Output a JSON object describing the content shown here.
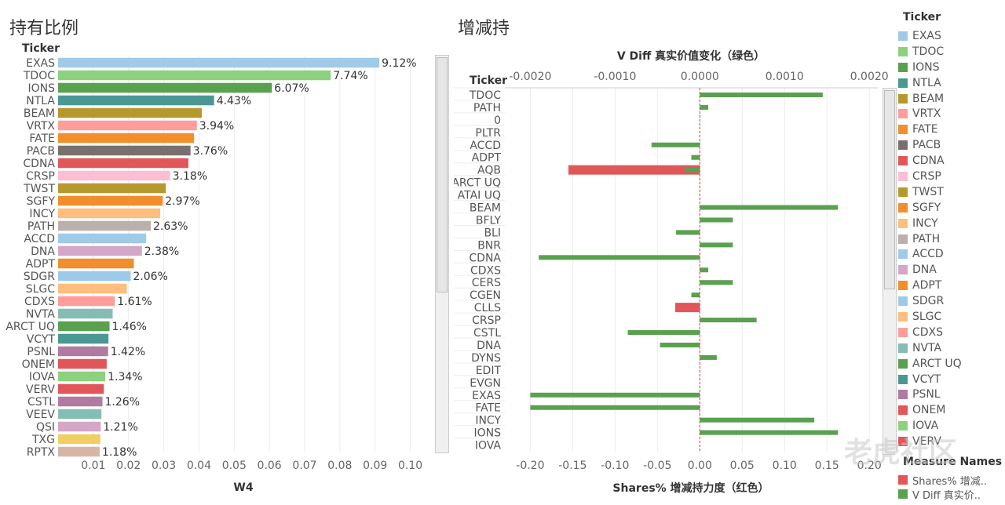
{
  "left_title": "持有比例",
  "right_title": "增减持",
  "chart_data": [
    {
      "type": "bar",
      "orientation": "horizontal",
      "row_header": "Ticker",
      "xlabel": "W4",
      "xlim": [
        0,
        0.105
      ],
      "xticks": [
        0.01,
        0.02,
        0.03,
        0.04,
        0.05,
        0.06,
        0.07,
        0.08,
        0.09,
        0.1
      ],
      "xtick_labels": [
        "0.01",
        "0.02",
        "0.03",
        "0.04",
        "0.05",
        "0.06",
        "0.07",
        "0.08",
        "0.09",
        "0.10"
      ],
      "categories": [
        "EXAS",
        "TDOC",
        "IONS",
        "NTLA",
        "BEAM",
        "VRTX",
        "FATE",
        "PACB",
        "CDNA",
        "CRSP",
        "TWST",
        "SGFY",
        "INCY",
        "PATH",
        "ACCD",
        "DNA",
        "ADPT",
        "SDGR",
        "SLGC",
        "CDXS",
        "NVTA",
        "ARCT UQ",
        "VCYT",
        "PSNL",
        "ONEM",
        "IOVA",
        "VERV",
        "CSTL",
        "VEEV",
        "QSI",
        "TXG",
        "RPTX"
      ],
      "values": [
        0.0912,
        0.0774,
        0.0607,
        0.0443,
        0.0408,
        0.0394,
        0.0386,
        0.0376,
        0.037,
        0.0318,
        0.0306,
        0.0297,
        0.029,
        0.0263,
        0.025,
        0.0238,
        0.0215,
        0.0206,
        0.0195,
        0.0161,
        0.0155,
        0.0146,
        0.0143,
        0.0142,
        0.0138,
        0.0134,
        0.013,
        0.0126,
        0.0123,
        0.0121,
        0.012,
        0.0118
      ],
      "data_labels": [
        "9.12%",
        "7.74%",
        "6.07%",
        "4.43%",
        "",
        "3.94%",
        "",
        "3.76%",
        "",
        "3.18%",
        "",
        "2.97%",
        "",
        "2.63%",
        "",
        "2.38%",
        "",
        "2.06%",
        "",
        "1.61%",
        "",
        "1.46%",
        "",
        "1.42%",
        "",
        "1.34%",
        "",
        "1.26%",
        "",
        "1.21%",
        "",
        "1.18%"
      ],
      "colors": [
        "#a0cbe8",
        "#8cd17d",
        "#59a14f",
        "#499894",
        "#b6992d",
        "#ff9d9a",
        "#f28e2b",
        "#79706e",
        "#e15759",
        "#fabfd2",
        "#b6992d",
        "#f28e2b",
        "#ffbe7d",
        "#bab0ac",
        "#a0cbe8",
        "#d4a6c8",
        "#f28e2b",
        "#9ecae9",
        "#ffbe7d",
        "#ff9d9a",
        "#86bcb6",
        "#59a14f",
        "#499894",
        "#b07aa1",
        "#e15759",
        "#8cd17d",
        "#e15759",
        "#b07aa1",
        "#86bcb6",
        "#d4a6c8",
        "#f1ce63",
        "#d7b5a6"
      ]
    },
    {
      "type": "bar",
      "orientation": "horizontal",
      "row_header": "Ticker",
      "top_axis_label": "V Diff 真实价值变化（绿色）",
      "bottom_axis_label": "Shares% 增减持力度（红色）",
      "top_xlim": [
        -0.0023,
        0.0021
      ],
      "top_ticks": [
        -0.002,
        -0.001,
        0.0,
        0.001,
        0.002
      ],
      "top_tick_labels": [
        "-0.0020",
        "-0.0010",
        "0.0000",
        "0.0010",
        "0.0020"
      ],
      "bottom_xlim": [
        -0.23,
        0.21
      ],
      "bottom_ticks": [
        -0.2,
        -0.15,
        -0.1,
        -0.05,
        0.0,
        0.05,
        0.1,
        0.15,
        0.2
      ],
      "bottom_tick_labels": [
        "-0.20",
        "-0.15",
        "-0.10",
        "-0.05",
        "0.00",
        "0.05",
        "0.10",
        "0.15",
        "0.20"
      ],
      "categories": [
        "TDOC",
        "PATH",
        "0",
        "PLTR",
        "ACCD",
        "ADPT",
        "AQB",
        "ARCT UQ",
        "ATAI UQ",
        "BEAM",
        "BFLY",
        "BLI",
        "BNR",
        "CDNA",
        "CDXS",
        "CERS",
        "CGEN",
        "CLLS",
        "CRSP",
        "CSTL",
        "DNA",
        "DYNS",
        "EDIT",
        "EVGN",
        "EXAS",
        "FATE",
        "INCY",
        "IONS",
        "IOVA"
      ],
      "series": [
        {
          "name": "V Diff 真实价值变化",
          "color": "#59a14f",
          "values": [
            0.00145,
            0.0001,
            0,
            0,
            -0.00057,
            -0.0001,
            -0.00018,
            0,
            0,
            0.00163,
            0.00039,
            -0.00028,
            0.00039,
            -0.0019,
            0.0001,
            0.00039,
            -0.0001,
            0,
            0.00067,
            -0.00085,
            -0.00047,
            0.0002,
            0,
            0,
            -0.002,
            -0.002,
            0.00135,
            0.00163,
            0
          ]
        },
        {
          "name": "Shares% 增减持力度",
          "color": "#e15759",
          "values": [
            0,
            0,
            0,
            0,
            0,
            0,
            -0.155,
            0,
            0,
            0,
            0,
            0,
            0,
            0,
            0,
            0,
            0,
            -0.029,
            0,
            0,
            0,
            0,
            0,
            0,
            0,
            0,
            0,
            0,
            0
          ]
        }
      ]
    }
  ],
  "legend": {
    "title": "Ticker",
    "items": [
      {
        "label": "EXAS",
        "color": "#a0cbe8"
      },
      {
        "label": "TDOC",
        "color": "#8cd17d"
      },
      {
        "label": "IONS",
        "color": "#59a14f"
      },
      {
        "label": "NTLA",
        "color": "#499894"
      },
      {
        "label": "BEAM",
        "color": "#b6992d"
      },
      {
        "label": "VRTX",
        "color": "#ff9d9a"
      },
      {
        "label": "FATE",
        "color": "#f28e2b"
      },
      {
        "label": "PACB",
        "color": "#79706e"
      },
      {
        "label": "CDNA",
        "color": "#e15759"
      },
      {
        "label": "CRSP",
        "color": "#fabfd2"
      },
      {
        "label": "TWST",
        "color": "#b6992d"
      },
      {
        "label": "SGFY",
        "color": "#f28e2b"
      },
      {
        "label": "INCY",
        "color": "#ffbe7d"
      },
      {
        "label": "PATH",
        "color": "#bab0ac"
      },
      {
        "label": "ACCD",
        "color": "#a0cbe8"
      },
      {
        "label": "DNA",
        "color": "#d4a6c8"
      },
      {
        "label": "ADPT",
        "color": "#f28e2b"
      },
      {
        "label": "SDGR",
        "color": "#9ecae9"
      },
      {
        "label": "SLGC",
        "color": "#ffbe7d"
      },
      {
        "label": "CDXS",
        "color": "#ff9d9a"
      },
      {
        "label": "NVTA",
        "color": "#86bcb6"
      },
      {
        "label": "ARCT UQ",
        "color": "#59a14f"
      },
      {
        "label": "VCYT",
        "color": "#499894"
      },
      {
        "label": "PSNL",
        "color": "#b07aa1"
      },
      {
        "label": "ONEM",
        "color": "#e15759"
      },
      {
        "label": "IOVA",
        "color": "#8cd17d"
      },
      {
        "label": "VERV",
        "color": "#e15759"
      }
    ]
  },
  "measure_legend": {
    "title": "Measure Names",
    "items": [
      {
        "label": "Shares% 增减..",
        "color": "#e15759"
      },
      {
        "label": "V Diff 真实价..",
        "color": "#59a14f"
      }
    ]
  },
  "watermark": "老虎社区"
}
